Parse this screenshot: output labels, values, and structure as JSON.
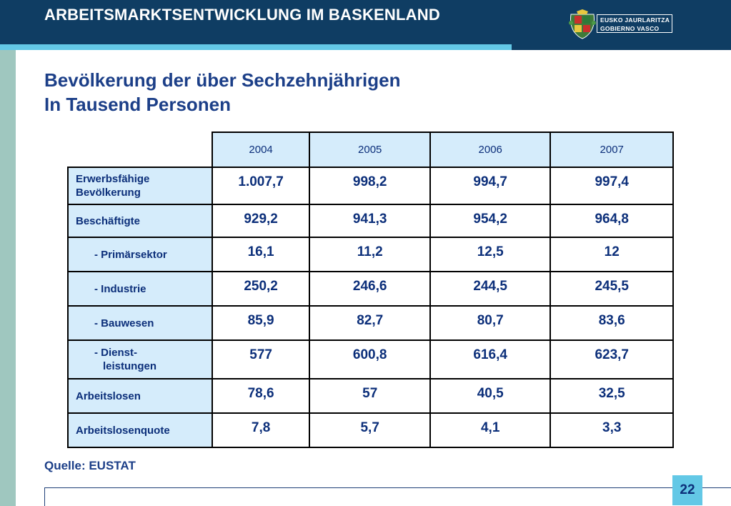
{
  "header": {
    "title": "ARBEITSMARKTSENTWICKLUNG IM BASKENLAND"
  },
  "logo": {
    "line1": "EUSKO JAURLARITZA",
    "line2": "GOBIERNO VASCO"
  },
  "title": {
    "line1": "Bevölkerung der über Sechzehnjährigen",
    "line2": "In Tausend Personen"
  },
  "table": {
    "years": [
      "2004",
      "2005",
      "2006",
      "2007"
    ],
    "rows": [
      {
        "label1": "Erwerbsfähige",
        "label2": "Bevölkerung",
        "values": [
          "1.007,7",
          "998,2",
          "994,7",
          "997,4"
        ]
      },
      {
        "label1": "Beschäftigte",
        "label2": "",
        "values": [
          "929,2",
          "941,3",
          "954,2",
          "964,8"
        ]
      },
      {
        "label1": "- Primärsektor",
        "label2": "",
        "values": [
          "16,1",
          "11,2",
          "12,5",
          "12"
        ]
      },
      {
        "label1": "- Industrie",
        "label2": "",
        "values": [
          "250,2",
          "246,6",
          "244,5",
          "245,5"
        ]
      },
      {
        "label1": "- Bauwesen",
        "label2": "",
        "values": [
          "85,9",
          "82,7",
          "80,7",
          "83,6"
        ]
      },
      {
        "label1": "- Dienst-",
        "label2": "  leistungen",
        "values": [
          "577",
          "600,8",
          "616,4",
          "623,7"
        ]
      },
      {
        "label1": "Arbeitslosen",
        "label2": "",
        "values": [
          "78,6",
          "57",
          "40,5",
          "32,5"
        ]
      },
      {
        "label1": "Arbeitslosenquote",
        "label2": "",
        "values": [
          "7,8",
          "5,7",
          "4,1",
          "3,3"
        ]
      }
    ]
  },
  "source": "Quelle: EUSTAT",
  "page_number": "22",
  "colors": {
    "header_bg": "#0f3d63",
    "accent": "#63c8e6",
    "left_bar": "#9fc7bf",
    "text_blue": "#1c3f88",
    "cell_bg": "#d5ecfb"
  }
}
